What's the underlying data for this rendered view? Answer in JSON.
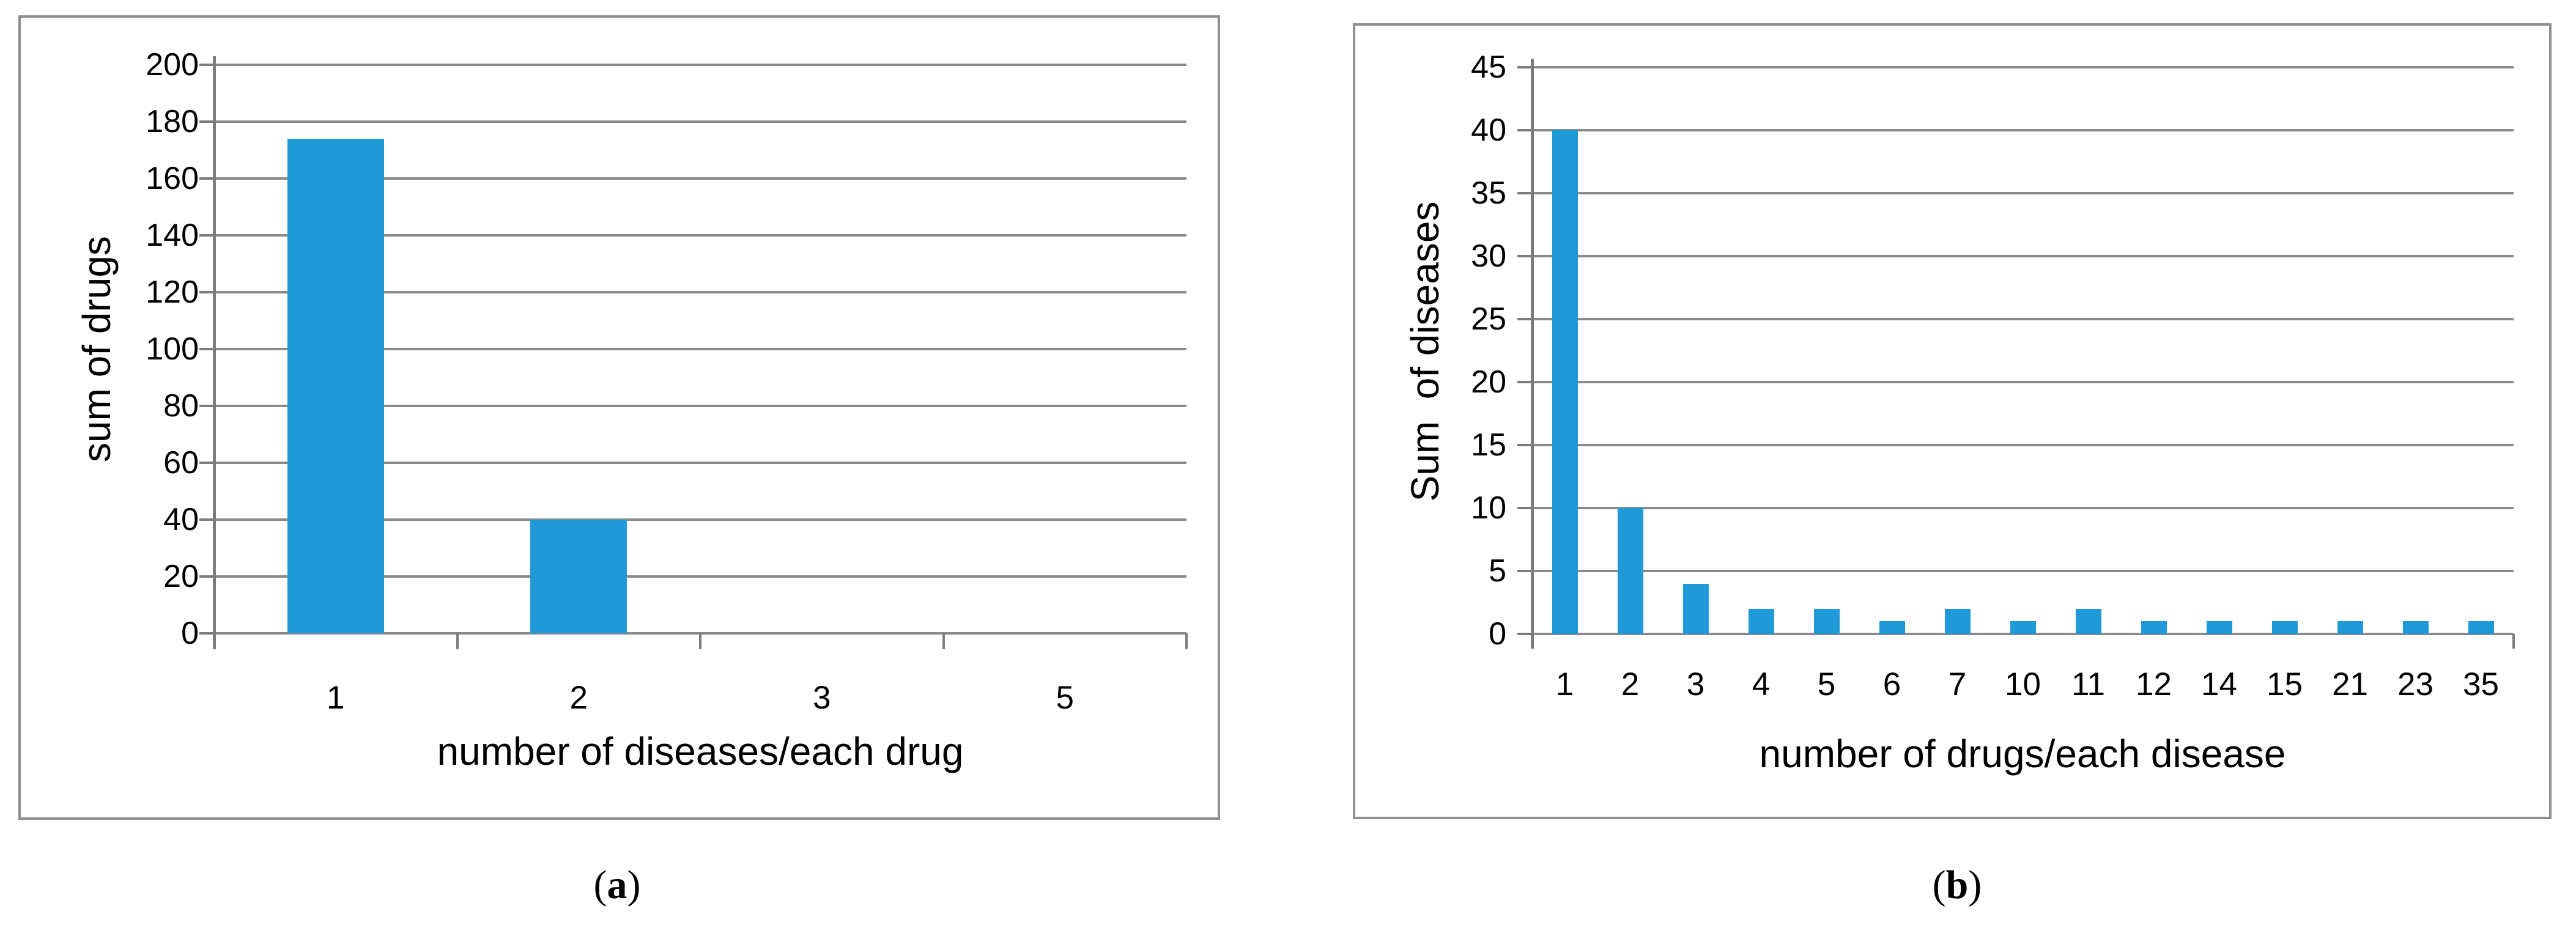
{
  "colors": {
    "bar": "#1f99d7",
    "grid": "#8a8a8a",
    "axis": "#7c7c7c",
    "panel_border": "#8f8f8f",
    "text": "#000000"
  },
  "chart_data": [
    {
      "id": "a",
      "type": "bar",
      "caption": "(a)",
      "title": "",
      "categories": [
        "1",
        "2",
        "3",
        "5"
      ],
      "values": [
        174,
        40,
        0,
        0
      ],
      "xlabel": "number of diseases/each drug",
      "ylabel": "sum of drugs",
      "ylim": [
        0,
        200
      ],
      "yticks": [
        0,
        20,
        40,
        60,
        80,
        100,
        120,
        140,
        160,
        180,
        200
      ],
      "grid": "horizontal",
      "legend_position": "none"
    },
    {
      "id": "b",
      "type": "bar",
      "caption": "(b)",
      "title": "",
      "categories": [
        "1",
        "2",
        "3",
        "4",
        "5",
        "6",
        "7",
        "10",
        "11",
        "12",
        "14",
        "15",
        "21",
        "23",
        "35"
      ],
      "values": [
        40,
        10,
        4,
        2,
        2,
        1,
        2,
        1,
        2,
        1,
        1,
        1,
        1,
        1,
        1
      ],
      "xlabel": "number of drugs/each disease",
      "ylabel": "Sum  of diseases",
      "ylim": [
        0,
        45
      ],
      "yticks": [
        0,
        5,
        10,
        15,
        20,
        25,
        30,
        35,
        40,
        45
      ],
      "grid": "horizontal",
      "legend_position": "none"
    }
  ]
}
